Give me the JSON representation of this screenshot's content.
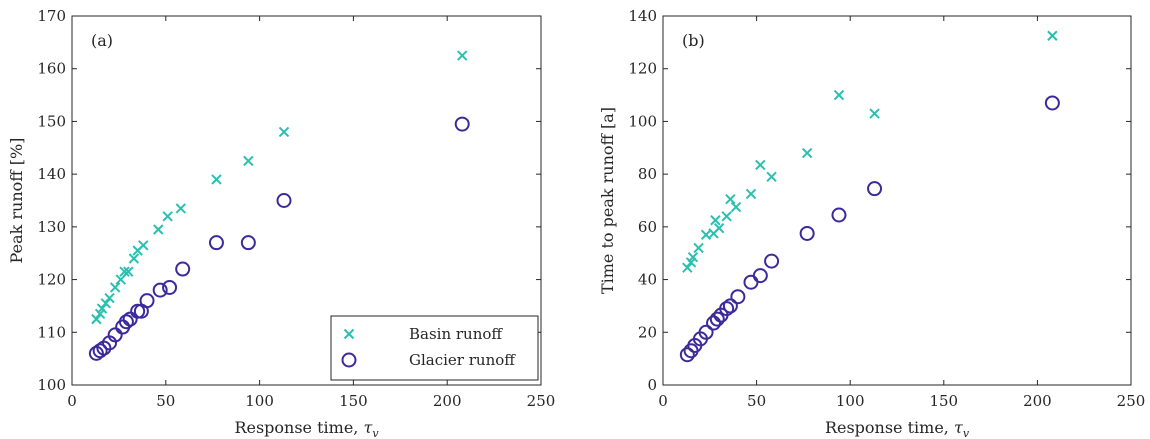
{
  "chart_data": [
    {
      "type": "scatter",
      "panel_label": "(a)",
      "xlabel": "Response time, ",
      "xlabel_symbol": "τ",
      "xlabel_sub": "v",
      "ylabel": "Peak runoff [%]",
      "xlim": [
        0,
        250
      ],
      "ylim": [
        100,
        170
      ],
      "xticks": [
        0,
        50,
        100,
        150,
        200,
        250
      ],
      "yticks": [
        100,
        110,
        120,
        130,
        140,
        150,
        160,
        170
      ],
      "grid": false,
      "legend": {
        "position": "bottom-right"
      },
      "series": [
        {
          "name": "Basin runoff",
          "marker": "x",
          "color": "#2bbfb0",
          "points": [
            [
              13,
              112.5
            ],
            [
              15,
              113.5
            ],
            [
              16,
              114.5
            ],
            [
              18,
              115.5
            ],
            [
              20,
              116.5
            ],
            [
              23,
              118.5
            ],
            [
              26,
              120
            ],
            [
              28,
              121.5
            ],
            [
              30,
              121.5
            ],
            [
              33,
              124
            ],
            [
              35,
              125.5
            ],
            [
              38,
              126.5
            ],
            [
              46,
              129.5
            ],
            [
              51,
              132
            ],
            [
              58,
              133.5
            ],
            [
              77,
              139
            ],
            [
              94,
              142.5
            ],
            [
              113,
              148
            ],
            [
              208,
              162.5
            ]
          ]
        },
        {
          "name": "Glacier runoff",
          "marker": "o",
          "color": "#3c2a9c",
          "points": [
            [
              13,
              106
            ],
            [
              15,
              106.5
            ],
            [
              17,
              107
            ],
            [
              20,
              108
            ],
            [
              23,
              109.5
            ],
            [
              27,
              111
            ],
            [
              29,
              112
            ],
            [
              31,
              112.5
            ],
            [
              35,
              114
            ],
            [
              37,
              114
            ],
            [
              40,
              116
            ],
            [
              47,
              118
            ],
            [
              52,
              118.5
            ],
            [
              59,
              122
            ],
            [
              77,
              127
            ],
            [
              94,
              127
            ],
            [
              113,
              135
            ],
            [
              208,
              149.5
            ]
          ]
        }
      ]
    },
    {
      "type": "scatter",
      "panel_label": "(b)",
      "xlabel": "Response time, ",
      "xlabel_symbol": "τ",
      "xlabel_sub": "v",
      "ylabel": "Time to peak runoff [a]",
      "xlim": [
        0,
        250
      ],
      "ylim": [
        0,
        140
      ],
      "xticks": [
        0,
        50,
        100,
        150,
        200,
        250
      ],
      "yticks": [
        0,
        20,
        40,
        60,
        80,
        100,
        120,
        140
      ],
      "grid": false,
      "series": [
        {
          "name": "Basin runoff",
          "marker": "x",
          "color": "#2bbfb0",
          "points": [
            [
              13,
              44.5
            ],
            [
              15,
              46.5
            ],
            [
              16,
              48.5
            ],
            [
              19,
              52
            ],
            [
              23,
              57
            ],
            [
              27,
              57.5
            ],
            [
              28,
              62.5
            ],
            [
              30,
              59.5
            ],
            [
              34,
              64
            ],
            [
              36,
              70.5
            ],
            [
              39,
              67.5
            ],
            [
              47,
              72.5
            ],
            [
              52,
              83.5
            ],
            [
              58,
              79
            ],
            [
              77,
              88
            ],
            [
              94,
              110
            ],
            [
              113,
              103
            ],
            [
              208,
              132.5
            ]
          ]
        },
        {
          "name": "Glacier runoff",
          "marker": "o",
          "color": "#3c2a9c",
          "points": [
            [
              13,
              11.5
            ],
            [
              15,
              13
            ],
            [
              17,
              15
            ],
            [
              20,
              17.5
            ],
            [
              23,
              20
            ],
            [
              27,
              23.5
            ],
            [
              29,
              25
            ],
            [
              31,
              26.5
            ],
            [
              34,
              29
            ],
            [
              36,
              30
            ],
            [
              40,
              33.5
            ],
            [
              47,
              39
            ],
            [
              52,
              41.5
            ],
            [
              58,
              47
            ],
            [
              77,
              57.5
            ],
            [
              94,
              64.5
            ],
            [
              113,
              74.5
            ],
            [
              208,
              107
            ]
          ]
        }
      ]
    }
  ]
}
